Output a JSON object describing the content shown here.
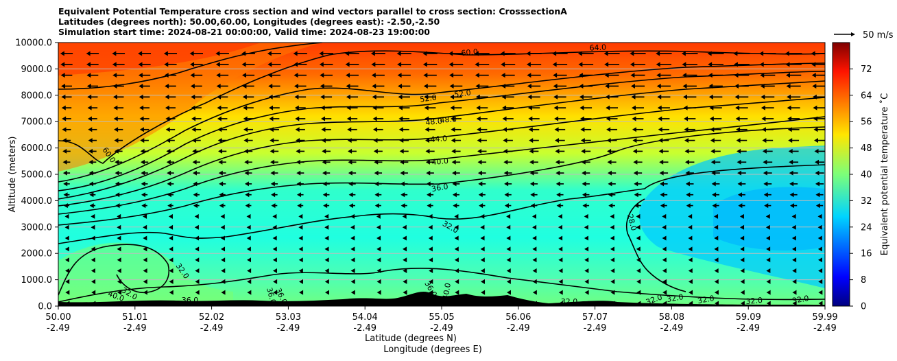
{
  "chart_data": {
    "type": "contour",
    "title_lines": [
      "Equivalent Potential Temperature cross section and wind vectors parallel to cross section: CrosssectionA",
      "Latitudes (degrees north): 50.00,60.00, Longitudes (degrees east): -2.50,-2.50",
      "Simulation start time: 2024-08-21 00:00:00, Valid time: 2024-08-23 19:00:00"
    ],
    "ylabel": "Altitude (meters)",
    "xlabel_lat": "Latitude (degrees N)",
    "xlabel_lon": "Longitude (degrees E)",
    "ylim": [
      0,
      10000
    ],
    "y_ticks": [
      "0.0",
      "1000.0",
      "2000.0",
      "3000.0",
      "4000.0",
      "5000.0",
      "6000.0",
      "7000.0",
      "8000.0",
      "9000.0",
      "10000.0"
    ],
    "x_ticks_lat": [
      "50.00",
      "51.01",
      "52.02",
      "53.03",
      "54.04",
      "55.05",
      "56.06",
      "57.07",
      "58.08",
      "59.09",
      "59.99"
    ],
    "x_ticks_lon": [
      "-2.49",
      "-2.49",
      "-2.49",
      "-2.49",
      "-2.49",
      "-2.49",
      "-2.49",
      "-2.49",
      "-2.49",
      "-2.49",
      "-2.49"
    ],
    "grid": "horizontal",
    "colorbar": {
      "label": "Equivalent potential temperature ˚C",
      "min": 0,
      "max": 80,
      "ticks": [
        "0",
        "8",
        "16",
        "24",
        "32",
        "40",
        "48",
        "56",
        "64",
        "72"
      ]
    },
    "quiver_key": "50 m/s",
    "contour_labels": [
      "60.0",
      "64.0",
      "60.0",
      "52.0",
      "52.0",
      "48.0",
      "48.0",
      "44.0",
      "40.0",
      "36.0",
      "32.0",
      "28.0",
      "60.0",
      "32.0",
      "36.0",
      "36.0",
      "36.0",
      "36.0",
      "40.0",
      "40.0",
      "32.0",
      "32.0",
      "32.0",
      "32.0",
      "32.0",
      "32.0",
      "32.0"
    ]
  },
  "colors": {
    "terrain": "#000000",
    "contour": "#000000"
  }
}
